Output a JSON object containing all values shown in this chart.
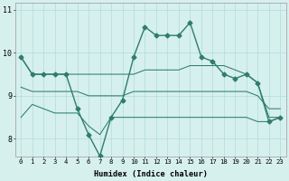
{
  "xlabel": "Humidex (Indice chaleur)",
  "x": [
    0,
    1,
    2,
    3,
    4,
    5,
    6,
    7,
    8,
    9,
    10,
    11,
    12,
    13,
    14,
    15,
    16,
    17,
    18,
    19,
    20,
    21,
    22,
    23
  ],
  "series_main": [
    9.9,
    9.5,
    9.5,
    9.5,
    9.5,
    8.7,
    8.1,
    7.6,
    8.5,
    8.9,
    9.9,
    10.6,
    10.4,
    10.4,
    10.4,
    10.7,
    9.9,
    9.8,
    9.5,
    9.4,
    9.5,
    9.3,
    8.4,
    8.5
  ],
  "series_max": [
    9.9,
    9.5,
    9.5,
    9.5,
    9.5,
    9.5,
    9.5,
    9.5,
    9.5,
    9.5,
    9.5,
    9.6,
    9.6,
    9.6,
    9.6,
    9.7,
    9.7,
    9.7,
    9.7,
    9.6,
    9.5,
    9.3,
    8.5,
    8.5
  ],
  "series_mean": [
    9.2,
    9.1,
    9.1,
    9.1,
    9.1,
    9.1,
    9.0,
    9.0,
    9.0,
    9.0,
    9.1,
    9.1,
    9.1,
    9.1,
    9.1,
    9.1,
    9.1,
    9.1,
    9.1,
    9.1,
    9.1,
    9.0,
    8.7,
    8.7
  ],
  "series_min": [
    8.5,
    8.8,
    8.7,
    8.6,
    8.6,
    8.6,
    8.3,
    8.1,
    8.5,
    8.5,
    8.5,
    8.5,
    8.5,
    8.5,
    8.5,
    8.5,
    8.5,
    8.5,
    8.5,
    8.5,
    8.5,
    8.4,
    8.4,
    8.5
  ],
  "line_color": "#2E7D6E",
  "bg_color": "#D6F0EE",
  "grid_color": "#B0DDD8",
  "ylim_min": 7.6,
  "ylim_max": 11.15,
  "yticks": [
    8,
    9,
    10,
    11
  ]
}
